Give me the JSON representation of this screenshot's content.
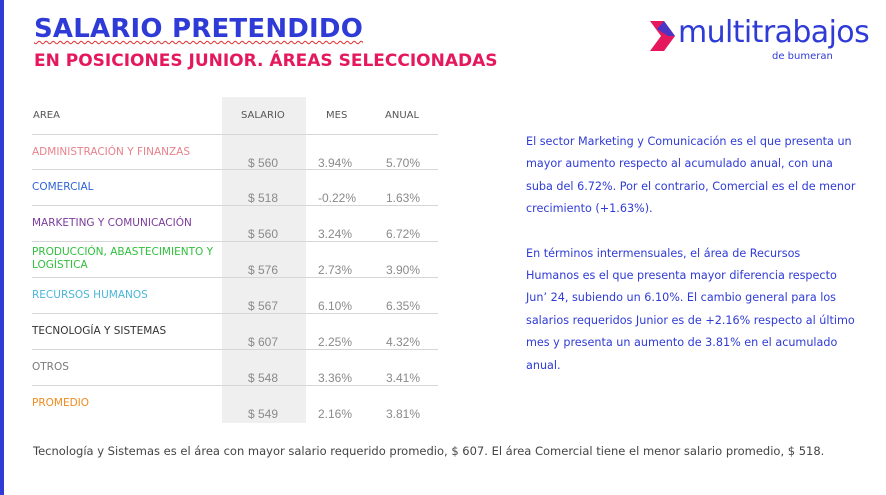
{
  "header": {
    "title": "SALARIO PRETENDIDO",
    "subtitle": "EN POSICIONES JUNIOR. ÁREAS SELECCIONADAS"
  },
  "logo": {
    "wordmark": "multitrabajos",
    "tagline": "de bumeran",
    "brand_color": "#2f3bd6",
    "accent_color": "#e5185e"
  },
  "table": {
    "columns": [
      "AREA",
      "SALARIO",
      "MES",
      "ANUAL"
    ],
    "rows": [
      {
        "area": "ADMINISTRACIÓN Y FINANZAS",
        "salario": "$ 560",
        "mes": "3.94%",
        "anual": "5.70%",
        "color": "#e8828c"
      },
      {
        "area": "COMERCIAL",
        "salario": "$ 518",
        "mes": "-0.22%",
        "anual": "1.63%",
        "color": "#2f63d6"
      },
      {
        "area": "MARKETING Y COMUNICACIÓN",
        "salario": "$ 560",
        "mes": "3.24%",
        "anual": "6.72%",
        "color": "#7b3c9c"
      },
      {
        "area": "PRODUCCIÓN, ABASTECIMIENTO Y LOGÍSTICA",
        "salario": "$ 576",
        "mes": "2.73%",
        "anual": "3.90%",
        "color": "#2fbf3c"
      },
      {
        "area": "RECURSOS HUMANOS",
        "salario": "$ 567",
        "mes": "6.10%",
        "anual": "6.35%",
        "color": "#4ab6d9"
      },
      {
        "area": "TECNOLOGÍA Y SISTEMAS",
        "salario": "$ 607",
        "mes": "2.25%",
        "anual": "4.32%",
        "color": "#333333"
      },
      {
        "area": "OTROS",
        "salario": "$ 548",
        "mes": "3.36%",
        "anual": "3.41%",
        "color": "#7a7a7a"
      },
      {
        "area": "PROMEDIO",
        "salario": "$ 549",
        "mes": "2.16%",
        "anual": "3.81%",
        "color": "#f08a1c"
      }
    ]
  },
  "commentary": {
    "paragraph_1": "El sector Marketing y Comunicación es el que presenta un mayor aumento respecto al acumulado anual, con una suba del 6.72%. Por el contrario, Comercial es el de menor crecimiento (+1.63%).",
    "paragraph_2": "En términos intermensuales, el área de Recursos Humanos es el que presenta mayor diferencia respecto Jun’ 24, subiendo un 6.10%. El cambio general para los salarios requeridos Junior es de +2.16% respecto al último mes y presenta un aumento de 3.81% en el acumulado anual."
  },
  "footnote": "Tecnología y Sistemas es el área con mayor salario requerido promedio, $ 607. El área Comercial tiene el menor salario promedio, $ 518."
}
